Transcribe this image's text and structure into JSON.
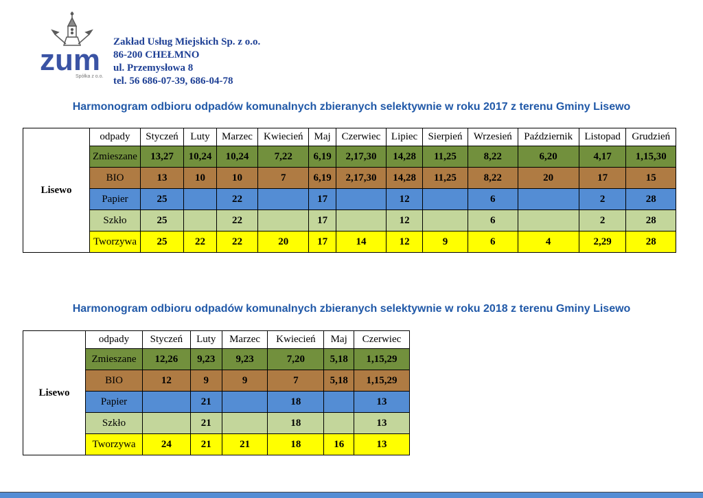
{
  "letterhead": {
    "logo_text": "zum",
    "logo_subtext": "Spółka z o.o.",
    "company": {
      "name": "Zakład Usług Miejskich Sp. z o.o.",
      "postal": "86-200 CHEŁMNO",
      "street": "ul. Przemysłowa 8",
      "phone": "tel. 56 686-07-39, 686-04-78"
    }
  },
  "tables": [
    {
      "title": "Harmonogram odbioru odpadów komunalnych zbieranych selektywnie w roku 2017  z terenu Gminy Lisewo",
      "region": "Lisewo",
      "columns": [
        "odpady",
        "Styczeń",
        "Luty",
        "Marzec",
        "Kwiecień",
        "Maj",
        "Czerwiec",
        "Lipiec",
        "Sierpień",
        "Wrzesień",
        "Październik",
        "Listopad",
        "Grudzień"
      ],
      "rows": [
        {
          "label": "Zmieszane",
          "color": "#72903D",
          "values": [
            "13,27",
            "10,24",
            "10,24",
            "7,22",
            "6,19",
            "2,17,30",
            "14,28",
            "11,25",
            "8,22",
            "6,20",
            "4,17",
            "1,15,30"
          ]
        },
        {
          "label": "BIO",
          "color": "#AF7B43",
          "values": [
            "13",
            "10",
            "10",
            "7",
            "6,19",
            "2,17,30",
            "14,28",
            "11,25",
            "8,22",
            "20",
            "17",
            "15"
          ]
        },
        {
          "label": "Papier",
          "color": "#548DD4",
          "values": [
            "25",
            "",
            "22",
            "",
            "17",
            "",
            "12",
            "",
            "6",
            "",
            "2",
            "28"
          ]
        },
        {
          "label": "Szkło",
          "color": "#C3D69B",
          "values": [
            "25",
            "",
            "22",
            "",
            "17",
            "",
            "12",
            "",
            "6",
            "",
            "2",
            "28"
          ]
        },
        {
          "label": "Tworzywa",
          "color": "#FFFF00",
          "values": [
            "25",
            "22",
            "22",
            "20",
            "17",
            "14",
            "12",
            "9",
            "6",
            "4",
            "2,29",
            "28"
          ]
        }
      ]
    },
    {
      "title": "Harmonogram odbioru odpadów komunalnych zbieranych selektywnie w roku 2018 z terenu Gminy Lisewo",
      "region": "Lisewo",
      "columns": [
        "odpady",
        "Styczeń",
        "Luty",
        "Marzec",
        "Kwiecień",
        "Maj",
        "Czerwiec"
      ],
      "rows": [
        {
          "label": "Zmieszane",
          "color": "#72903D",
          "values": [
            "12,26",
            "9,23",
            "9,23",
            "7,20",
            "5,18",
            "1,15,29"
          ]
        },
        {
          "label": "BIO",
          "color": "#AF7B43",
          "values": [
            "12",
            "9",
            "9",
            "7",
            "5,18",
            "1,15,29"
          ]
        },
        {
          "label": "Papier",
          "color": "#548DD4",
          "values": [
            "",
            "21",
            "",
            "18",
            "",
            "13"
          ]
        },
        {
          "label": "Szkło",
          "color": "#C3D69B",
          "values": [
            "",
            "21",
            "",
            "18",
            "",
            "13"
          ]
        },
        {
          "label": "Tworzywa",
          "color": "#FFFF00",
          "values": [
            "24",
            "21",
            "21",
            "18",
            "16",
            "13"
          ]
        }
      ]
    }
  ],
  "colors": {
    "title_blue": "#2159A8",
    "company_blue": "#1C3E94",
    "logo_blue": "#3A53A4",
    "row_zmieszane": "#72903D",
    "row_bio": "#AF7B43",
    "row_papier": "#548DD4",
    "row_szklo": "#C3D69B",
    "row_tworzywa": "#FFFF00",
    "bottom_bar": "#548DD4"
  }
}
